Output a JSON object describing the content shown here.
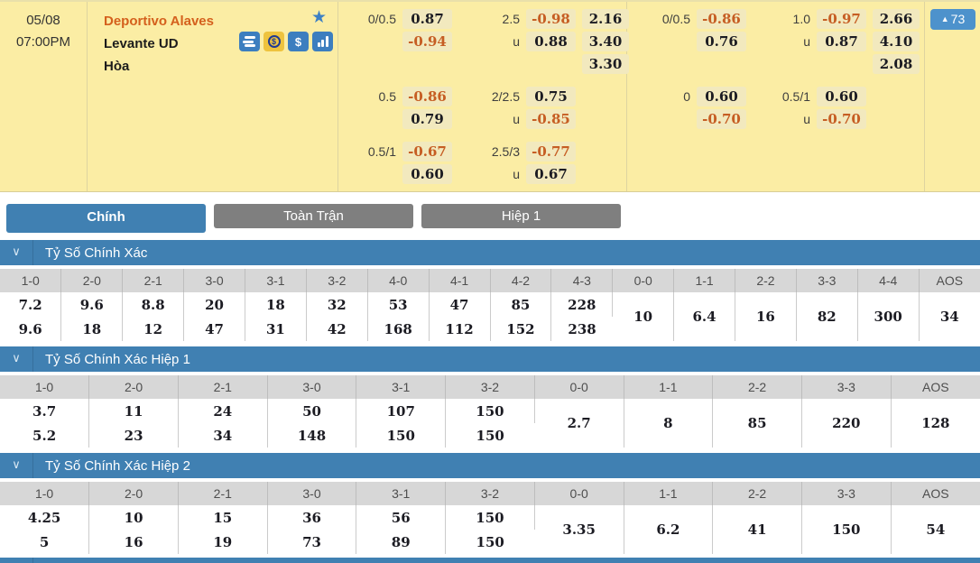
{
  "colors": {
    "panel_yellow": "#fbeda4",
    "chip_tan": "#f2e9be",
    "odds_negative_orange": "#c65d23",
    "header_blue": "#4080b2",
    "tab_gray": "#7f7f7f",
    "badge_blue": "#4d92cc"
  },
  "match": {
    "date": "05/08",
    "time": "07:00PM",
    "home_team": "Deportivo Alaves",
    "away_team": "Levante UD",
    "draw_label": "Hòa",
    "more_count": "73",
    "icons": [
      "bet-slip-icon",
      "cash-out-icon",
      "dollar-icon",
      "stats-icon"
    ]
  },
  "odds_labels": {
    "under": "u"
  },
  "odds_columns": [
    {
      "name": "full-time",
      "blocks": [
        {
          "hdp_line": "0/0.5",
          "hdp": [
            "0.87",
            "-0.94"
          ],
          "ou_line": "2.5",
          "ou": [
            "-0.98",
            "0.88"
          ],
          "x12": [
            "2.16",
            "3.40",
            "3.30"
          ]
        },
        {
          "hdp_line": "0.5",
          "hdp": [
            "-0.86",
            "0.79"
          ],
          "ou_line": "2/2.5",
          "ou": [
            "0.75",
            "-0.85"
          ]
        },
        {
          "hdp_line": "0.5/1",
          "hdp": [
            "-0.67",
            "0.60"
          ],
          "ou_line": "2.5/3",
          "ou": [
            "-0.77",
            "0.67"
          ]
        }
      ]
    },
    {
      "name": "first-half",
      "blocks": [
        {
          "hdp_line": "0/0.5",
          "hdp": [
            "-0.86",
            "0.76"
          ],
          "ou_line": "1.0",
          "ou": [
            "-0.97",
            "0.87"
          ],
          "x12": [
            "2.66",
            "4.10",
            "2.08"
          ]
        },
        {
          "hdp_line": "0",
          "hdp": [
            "0.60",
            "-0.70"
          ],
          "ou_line": "0.5/1",
          "ou": [
            "0.60",
            "-0.70"
          ]
        }
      ]
    }
  ],
  "tabs": [
    {
      "label": "Chính",
      "active": true
    },
    {
      "label": "Toàn Trận",
      "active": false
    },
    {
      "label": "Hiệp 1",
      "active": false
    }
  ],
  "score_tables": [
    {
      "title": "Tỷ Số Chính Xác",
      "columns": [
        "1-0",
        "2-0",
        "2-1",
        "3-0",
        "3-1",
        "3-2",
        "4-0",
        "4-1",
        "4-2",
        "4-3",
        "0-0",
        "1-1",
        "2-2",
        "3-3",
        "4-4",
        "AOS"
      ],
      "cells": [
        [
          "7.2",
          "9.6"
        ],
        [
          "9.6",
          "18"
        ],
        [
          "8.8",
          "12"
        ],
        [
          "20",
          "47"
        ],
        [
          "18",
          "31"
        ],
        [
          "32",
          "42"
        ],
        [
          "53",
          "168"
        ],
        [
          "47",
          "112"
        ],
        [
          "85",
          "152"
        ],
        [
          "228",
          "238"
        ],
        [
          "10"
        ],
        [
          "6.4"
        ],
        [
          "16"
        ],
        [
          "82"
        ],
        [
          "300"
        ],
        [
          "34"
        ]
      ]
    },
    {
      "title": "Tỷ Số Chính Xác Hiệp 1",
      "columns": [
        "1-0",
        "2-0",
        "2-1",
        "3-0",
        "3-1",
        "3-2",
        "0-0",
        "1-1",
        "2-2",
        "3-3",
        "AOS"
      ],
      "cells": [
        [
          "3.7",
          "5.2"
        ],
        [
          "11",
          "23"
        ],
        [
          "24",
          "34"
        ],
        [
          "50",
          "148"
        ],
        [
          "107",
          "150"
        ],
        [
          "150",
          "150"
        ],
        [
          "2.7"
        ],
        [
          "8"
        ],
        [
          "85"
        ],
        [
          "220"
        ],
        [
          "128"
        ]
      ]
    },
    {
      "title": "Tỷ Số Chính Xác Hiệp 2",
      "columns": [
        "1-0",
        "2-0",
        "2-1",
        "3-0",
        "3-1",
        "3-2",
        "0-0",
        "1-1",
        "2-2",
        "3-3",
        "AOS"
      ],
      "cells": [
        [
          "4.25",
          "5"
        ],
        [
          "10",
          "16"
        ],
        [
          "15",
          "19"
        ],
        [
          "36",
          "73"
        ],
        [
          "56",
          "89"
        ],
        [
          "150",
          "150"
        ],
        [
          "3.35"
        ],
        [
          "6.2"
        ],
        [
          "41"
        ],
        [
          "150"
        ],
        [
          "54"
        ]
      ]
    }
  ]
}
